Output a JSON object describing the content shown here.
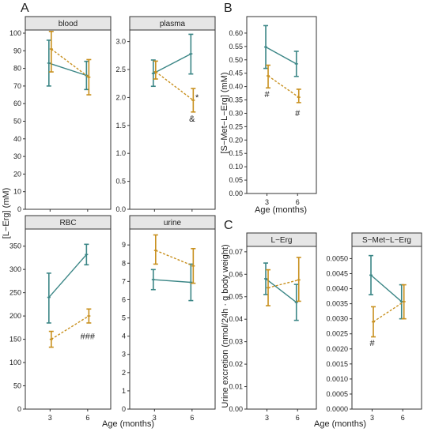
{
  "colors": {
    "teal": "#3b8686",
    "gold": "#c8901e",
    "strip_fill": "#e6e6e6",
    "axis": "#333333",
    "text": "#222222"
  },
  "shared_labels": {
    "ylabel_A": "[L−Erg] (mM)",
    "xlabel_A": "Age (months)",
    "ylabel_B": "[S−Met−L−Erg] (mM)",
    "xlabel_B": "Age (months)",
    "ylabel_C": "Urine excretion (nmol/24h · g body weight)",
    "xlabel_C": "Age (months)"
  },
  "chart_data": [
    {
      "type": "line",
      "panel": "A",
      "title": "blood",
      "x": [
        3,
        6
      ],
      "ylim": [
        0,
        100
      ],
      "yticks": [
        0,
        10,
        20,
        30,
        40,
        50,
        60,
        70,
        80,
        90,
        100
      ],
      "series": [
        {
          "color": "teal",
          "style": "solid",
          "mean": [
            83,
            76
          ],
          "lower": [
            70,
            68
          ],
          "upper": [
            96,
            84
          ]
        },
        {
          "color": "gold",
          "style": "dashed",
          "mean": [
            91,
            75
          ],
          "lower": [
            78,
            65
          ],
          "upper": [
            101,
            85
          ]
        }
      ],
      "annotations": []
    },
    {
      "type": "line",
      "panel": "A",
      "title": "plasma",
      "x": [
        3,
        6
      ],
      "ylim": [
        0,
        3.15
      ],
      "yticks": [
        0.0,
        0.5,
        1.0,
        1.5,
        2.0,
        2.5,
        3.0
      ],
      "series": [
        {
          "color": "teal",
          "style": "solid",
          "mean": [
            2.43,
            2.78
          ],
          "lower": [
            2.2,
            2.42
          ],
          "upper": [
            2.67,
            3.13
          ]
        },
        {
          "color": "gold",
          "style": "dashed",
          "mean": [
            2.46,
            1.95
          ],
          "lower": [
            2.33,
            1.74
          ],
          "upper": [
            2.65,
            2.16
          ]
        }
      ],
      "annotations": [
        {
          "x": 6,
          "y": 1.57,
          "text": "&"
        },
        {
          "x": 6.4,
          "y": 1.95,
          "text": "*"
        }
      ]
    },
    {
      "type": "line",
      "panel": "A",
      "title": "RBC",
      "x": [
        3,
        6
      ],
      "ylim": [
        0,
        380
      ],
      "yticks": [
        0,
        50,
        100,
        150,
        200,
        250,
        300,
        350
      ],
      "series": [
        {
          "color": "teal",
          "style": "solid",
          "mean": [
            240,
            332
          ],
          "lower": [
            185,
            310
          ],
          "upper": [
            292,
            354
          ]
        },
        {
          "color": "gold",
          "style": "dashed",
          "mean": [
            150,
            200
          ],
          "lower": [
            133,
            185
          ],
          "upper": [
            167,
            215
          ]
        }
      ],
      "annotations": [
        {
          "x": 6,
          "y": 150,
          "text": "###"
        }
      ]
    },
    {
      "type": "line",
      "panel": "A",
      "title": "urine",
      "x": [
        3,
        6
      ],
      "ylim": [
        0,
        9.7
      ],
      "yticks": [
        0,
        1,
        2,
        3,
        4,
        5,
        6,
        7,
        8,
        9
      ],
      "series": [
        {
          "color": "teal",
          "style": "solid",
          "mean": [
            7.1,
            6.95
          ],
          "lower": [
            6.55,
            5.95
          ],
          "upper": [
            7.65,
            7.95
          ]
        },
        {
          "color": "gold",
          "style": "dashed",
          "mean": [
            8.7,
            7.85
          ],
          "lower": [
            7.95,
            6.9
          ],
          "upper": [
            9.55,
            8.8
          ]
        }
      ],
      "annotations": []
    },
    {
      "type": "line",
      "panel": "B",
      "title": "",
      "x": [
        3,
        6
      ],
      "ylim": [
        0,
        0.65
      ],
      "yticks": [
        0.0,
        0.05,
        0.1,
        0.15,
        0.2,
        0.25,
        0.3,
        0.35,
        0.4,
        0.45,
        0.5,
        0.55,
        0.6
      ],
      "series": [
        {
          "color": "teal",
          "style": "solid",
          "mean": [
            0.548,
            0.485
          ],
          "lower": [
            0.468,
            0.438
          ],
          "upper": [
            0.628,
            0.532
          ]
        },
        {
          "color": "gold",
          "style": "dashed",
          "mean": [
            0.44,
            0.36
          ],
          "lower": [
            0.395,
            0.34
          ],
          "upper": [
            0.48,
            0.39
          ]
        }
      ],
      "annotations": [
        {
          "x": 3,
          "y": 0.36,
          "text": "#"
        },
        {
          "x": 6,
          "y": 0.29,
          "text": "#"
        }
      ]
    },
    {
      "type": "line",
      "panel": "C",
      "title": "L−Erg",
      "x": [
        3,
        6
      ],
      "ylim": [
        0,
        0.071
      ],
      "yticks": [
        0.0,
        0.01,
        0.02,
        0.03,
        0.04,
        0.05,
        0.06,
        0.07
      ],
      "series": [
        {
          "color": "teal",
          "style": "solid",
          "mean": [
            0.058,
            0.0475
          ],
          "lower": [
            0.051,
            0.0395
          ],
          "upper": [
            0.065,
            0.0555
          ]
        },
        {
          "color": "gold",
          "style": "dashed",
          "mean": [
            0.054,
            0.0575
          ],
          "lower": [
            0.046,
            0.048
          ],
          "upper": [
            0.062,
            0.0675
          ]
        }
      ],
      "annotations": []
    },
    {
      "type": "line",
      "panel": "C",
      "title": "S−Met−L−Erg",
      "x": [
        3,
        6
      ],
      "ylim": [
        0,
        0.0053
      ],
      "yticks": [
        0.0,
        0.0005,
        0.001,
        0.0015,
        0.002,
        0.0025,
        0.003,
        0.0035,
        0.004,
        0.0045,
        0.005
      ],
      "series": [
        {
          "color": "teal",
          "style": "solid",
          "mean": [
            0.00445,
            0.00357
          ],
          "lower": [
            0.0038,
            0.003
          ],
          "upper": [
            0.0051,
            0.00413
          ]
        },
        {
          "color": "gold",
          "style": "dashed",
          "mean": [
            0.0029,
            0.00357
          ],
          "lower": [
            0.0024,
            0.003
          ],
          "upper": [
            0.0034,
            0.00413
          ]
        }
      ],
      "annotations": [
        {
          "x": 3,
          "y": 0.0021,
          "text": "#"
        }
      ]
    }
  ]
}
